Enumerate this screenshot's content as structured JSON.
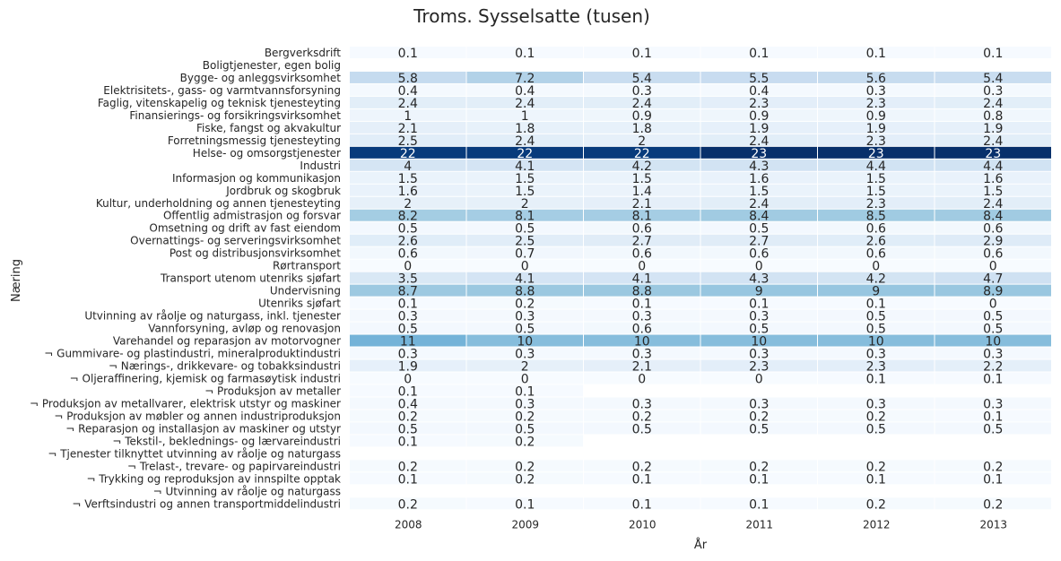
{
  "chart_data": {
    "type": "heatmap",
    "title": "Troms. Sysselsatte (tusen)",
    "xlabel": "År",
    "ylabel": "Næring",
    "colormap": "Blues",
    "grid": false,
    "x": [
      "2008",
      "2009",
      "2010",
      "2011",
      "2012",
      "2013"
    ],
    "rows": [
      {
        "label": "Bergverksdrift",
        "values": [
          0.1,
          0.1,
          0.1,
          0.1,
          0.1,
          0.1
        ]
      },
      {
        "label": "Boligtjenester, egen bolig",
        "values": [
          null,
          null,
          null,
          null,
          null,
          null
        ]
      },
      {
        "label": "Bygge- og anleggsvirksomhet",
        "values": [
          5.8,
          7.2,
          5.4,
          5.5,
          5.6,
          5.4
        ]
      },
      {
        "label": "Elektrisitets-, gass- og varmtvannsforsyning",
        "values": [
          0.4,
          0.4,
          0.3,
          0.4,
          0.3,
          0.3
        ]
      },
      {
        "label": "Faglig, vitenskapelig og teknisk tjenesteyting",
        "values": [
          2.4,
          2.4,
          2.4,
          2.3,
          2.3,
          2.4
        ]
      },
      {
        "label": "Finansierings- og forsikringsvirksomhet",
        "values": [
          1,
          1,
          0.9,
          0.9,
          0.9,
          0.8
        ]
      },
      {
        "label": "Fiske, fangst og akvakultur",
        "values": [
          2.1,
          1.8,
          1.8,
          1.9,
          1.9,
          1.9
        ]
      },
      {
        "label": "Forretningsmessig tjenesteyting",
        "values": [
          2.5,
          2.4,
          2,
          2.4,
          2.3,
          2.4
        ]
      },
      {
        "label": "Helse- og omsorgstjenester",
        "values": [
          22,
          22,
          22,
          23,
          23,
          23
        ]
      },
      {
        "label": "Industri",
        "values": [
          4,
          4.1,
          4.2,
          4.3,
          4.4,
          4.4
        ]
      },
      {
        "label": "Informasjon og kommunikasjon",
        "values": [
          1.5,
          1.5,
          1.5,
          1.6,
          1.5,
          1.6
        ]
      },
      {
        "label": "Jordbruk og skogbruk",
        "values": [
          1.6,
          1.5,
          1.4,
          1.5,
          1.5,
          1.5
        ]
      },
      {
        "label": "Kultur, underholdning og annen tjenesteyting",
        "values": [
          2,
          2,
          2.1,
          2.4,
          2.3,
          2.4
        ]
      },
      {
        "label": "Offentlig admistrasjon og forsvar",
        "values": [
          8.2,
          8.1,
          8.1,
          8.4,
          8.5,
          8.4
        ]
      },
      {
        "label": "Omsetning og drift av fast eiendom",
        "values": [
          0.5,
          0.5,
          0.6,
          0.5,
          0.6,
          0.6
        ]
      },
      {
        "label": "Overnattings- og serveringsvirksomhet",
        "values": [
          2.6,
          2.5,
          2.7,
          2.7,
          2.6,
          2.9
        ]
      },
      {
        "label": "Post og distribusjonsvirksomhet",
        "values": [
          0.6,
          0.7,
          0.6,
          0.6,
          0.6,
          0.6
        ]
      },
      {
        "label": "Rørtransport",
        "values": [
          0,
          0,
          0,
          0,
          0,
          0
        ]
      },
      {
        "label": "Transport utenom utenriks sjøfart",
        "values": [
          3.5,
          4.1,
          4.1,
          4.3,
          4.2,
          4.7
        ]
      },
      {
        "label": "Undervisning",
        "values": [
          8.7,
          8.8,
          8.8,
          9,
          9,
          8.9
        ]
      },
      {
        "label": "Utenriks sjøfart",
        "values": [
          0.1,
          0.2,
          0.1,
          0.1,
          0.1,
          0
        ]
      },
      {
        "label": "Utvinning av råolje og naturgass, inkl. tjenester",
        "values": [
          0.3,
          0.3,
          0.3,
          0.3,
          0.5,
          0.5
        ]
      },
      {
        "label": "Vannforsyning, avløp og renovasjon",
        "values": [
          0.5,
          0.5,
          0.6,
          0.5,
          0.5,
          0.5
        ]
      },
      {
        "label": "Varehandel og reparasjon av motorvogner",
        "values": [
          11,
          10,
          10,
          10,
          10,
          10
        ]
      },
      {
        "label": "¬ Gummivare- og plastindustri, mineralproduktindustri",
        "values": [
          0.3,
          0.3,
          0.3,
          0.3,
          0.3,
          0.3
        ]
      },
      {
        "label": "¬ Nærings-, drikkevare- og tobakksindustri",
        "values": [
          1.9,
          2,
          2.1,
          2.3,
          2.3,
          2.2
        ]
      },
      {
        "label": "¬ Oljeraffinering, kjemisk og farmasøytisk industri",
        "values": [
          0,
          0,
          0,
          0,
          0.1,
          0.1
        ]
      },
      {
        "label": "¬ Produksjon av metaller",
        "values": [
          0.1,
          0.1,
          null,
          null,
          null,
          null
        ]
      },
      {
        "label": "¬ Produksjon av metallvarer, elektrisk utstyr og maskiner",
        "values": [
          0.4,
          0.3,
          0.3,
          0.3,
          0.3,
          0.3
        ]
      },
      {
        "label": "¬ Produksjon av møbler og annen industriproduksjon",
        "values": [
          0.2,
          0.2,
          0.2,
          0.2,
          0.2,
          0.1
        ]
      },
      {
        "label": "¬ Reparasjon og installasjon av maskiner og utstyr",
        "values": [
          0.5,
          0.5,
          0.5,
          0.5,
          0.5,
          0.5
        ]
      },
      {
        "label": "¬ Tekstil-, beklednings- og lærvareindustri",
        "values": [
          0.1,
          0.2,
          null,
          null,
          null,
          null
        ]
      },
      {
        "label": "¬ Tjenester tilknyttet utvinning av råolje og naturgass",
        "values": [
          null,
          null,
          null,
          null,
          null,
          null
        ]
      },
      {
        "label": "¬ Trelast-, trevare- og papirvareindustri",
        "values": [
          0.2,
          0.2,
          0.2,
          0.2,
          0.2,
          0.2
        ]
      },
      {
        "label": "¬ Trykking og reproduksjon av innspilte opptak",
        "values": [
          0.1,
          0.2,
          0.1,
          0.1,
          0.1,
          0.1
        ]
      },
      {
        "label": "¬ Utvinning av råolje og naturgass",
        "values": [
          null,
          null,
          null,
          null,
          null,
          null
        ]
      },
      {
        "label": "¬ Verftsindustri og annen transportmiddelindustri",
        "values": [
          0.2,
          0.1,
          0.1,
          0.1,
          0.2,
          0.2
        ]
      }
    ]
  }
}
